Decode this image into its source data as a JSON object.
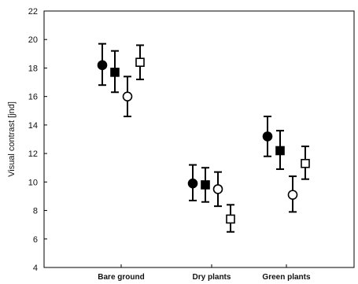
{
  "chart_data": {
    "type": "scatter",
    "title": "",
    "xlabel": "",
    "ylabel": "Visual contrast [jnd]",
    "ylim": [
      4,
      22
    ],
    "y_ticks": [
      4,
      6,
      8,
      10,
      12,
      14,
      16,
      18,
      20,
      22
    ],
    "grid": false,
    "categories": [
      "Bare ground",
      "Dry plants",
      "Green plants"
    ],
    "marker_styles": [
      "filled-circle",
      "filled-square",
      "open-circle",
      "open-square"
    ],
    "series": [
      {
        "values": [
          18.2,
          9.9,
          13.2
        ],
        "err_low": [
          16.8,
          8.7,
          11.8
        ],
        "err_high": [
          19.7,
          11.2,
          14.6
        ]
      },
      {
        "values": [
          17.7,
          9.8,
          12.2
        ],
        "err_low": [
          16.3,
          8.6,
          10.9
        ],
        "err_high": [
          19.2,
          11.0,
          13.6
        ]
      },
      {
        "values": [
          16.0,
          9.5,
          9.1
        ],
        "err_low": [
          14.6,
          8.3,
          7.9
        ],
        "err_high": [
          17.4,
          10.7,
          10.4
        ]
      },
      {
        "values": [
          18.4,
          7.4,
          11.3
        ],
        "err_low": [
          17.2,
          6.5,
          10.2
        ],
        "err_high": [
          19.6,
          8.4,
          12.5
        ]
      }
    ]
  }
}
